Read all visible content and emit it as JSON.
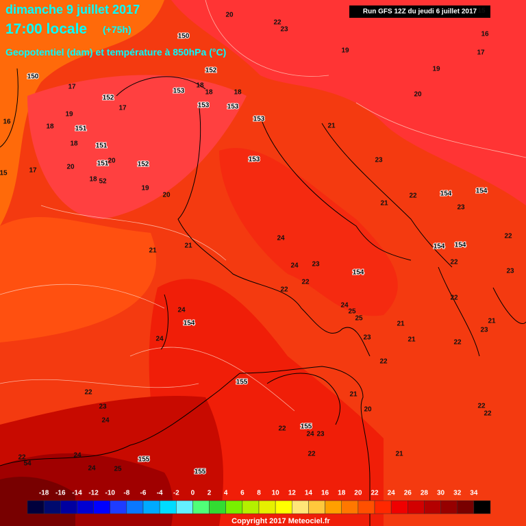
{
  "header": {
    "date": "dimanche 9 juillet 2017",
    "time": "17:00 locale",
    "lead": "(+75h)",
    "field": "Geopotentiel (dam) et température à 850hPa (°C)",
    "run": "Run GFS 12Z du jeudi 6 juillet 2017"
  },
  "map_labels": [
    "20",
    "22",
    "23",
    "150",
    "19",
    "17",
    "16",
    "15",
    "19",
    "152",
    "150",
    "17",
    "152",
    "153",
    "18",
    "18",
    "18",
    "17",
    "153",
    "153",
    "20",
    "19",
    "16",
    "18",
    "151",
    "153",
    "21",
    "18",
    "151",
    "20",
    "151",
    "20",
    "152",
    "153",
    "23",
    "17",
    "15",
    "18",
    "52",
    "19",
    "20",
    "154",
    "154",
    "22",
    "23",
    "21",
    "21",
    "21",
    "24",
    "154",
    "154",
    "22",
    "22",
    "23",
    "24",
    "23",
    "154",
    "22",
    "22",
    "22",
    "24",
    "154",
    "24",
    "25",
    "25",
    "21",
    "23",
    "21",
    "24",
    "23",
    "21",
    "22",
    "22",
    "155",
    "22",
    "23",
    "24",
    "21",
    "20",
    "22",
    "22",
    "155",
    "24",
    "23",
    "22",
    "22",
    "21",
    "24",
    "155",
    "24",
    "25",
    "155",
    "22",
    "54"
  ],
  "legend": {
    "labels": [
      -18,
      -16,
      -14,
      -12,
      -10,
      -8,
      -6,
      -4,
      -2,
      0,
      2,
      4,
      6,
      8,
      10,
      12,
      14,
      16,
      18,
      20,
      22,
      24,
      26,
      28,
      30,
      32,
      34
    ],
    "colors": [
      "#00003c",
      "#000a6e",
      "#0000a0",
      "#0000d2",
      "#0000ff",
      "#1e3cff",
      "#0a78ff",
      "#00aaff",
      "#00dcff",
      "#64f0ff",
      "#50ff78",
      "#32dc32",
      "#78f000",
      "#b4f000",
      "#e6f000",
      "#ffff00",
      "#ffe678",
      "#ffc83c",
      "#ffa000",
      "#ff7800",
      "#ff5000",
      "#ff2800",
      "#f00000",
      "#d20000",
      "#b40000",
      "#960000",
      "#780000",
      "#000000"
    ]
  },
  "copyright": "Copyright 2017 Meteociel.fr"
}
